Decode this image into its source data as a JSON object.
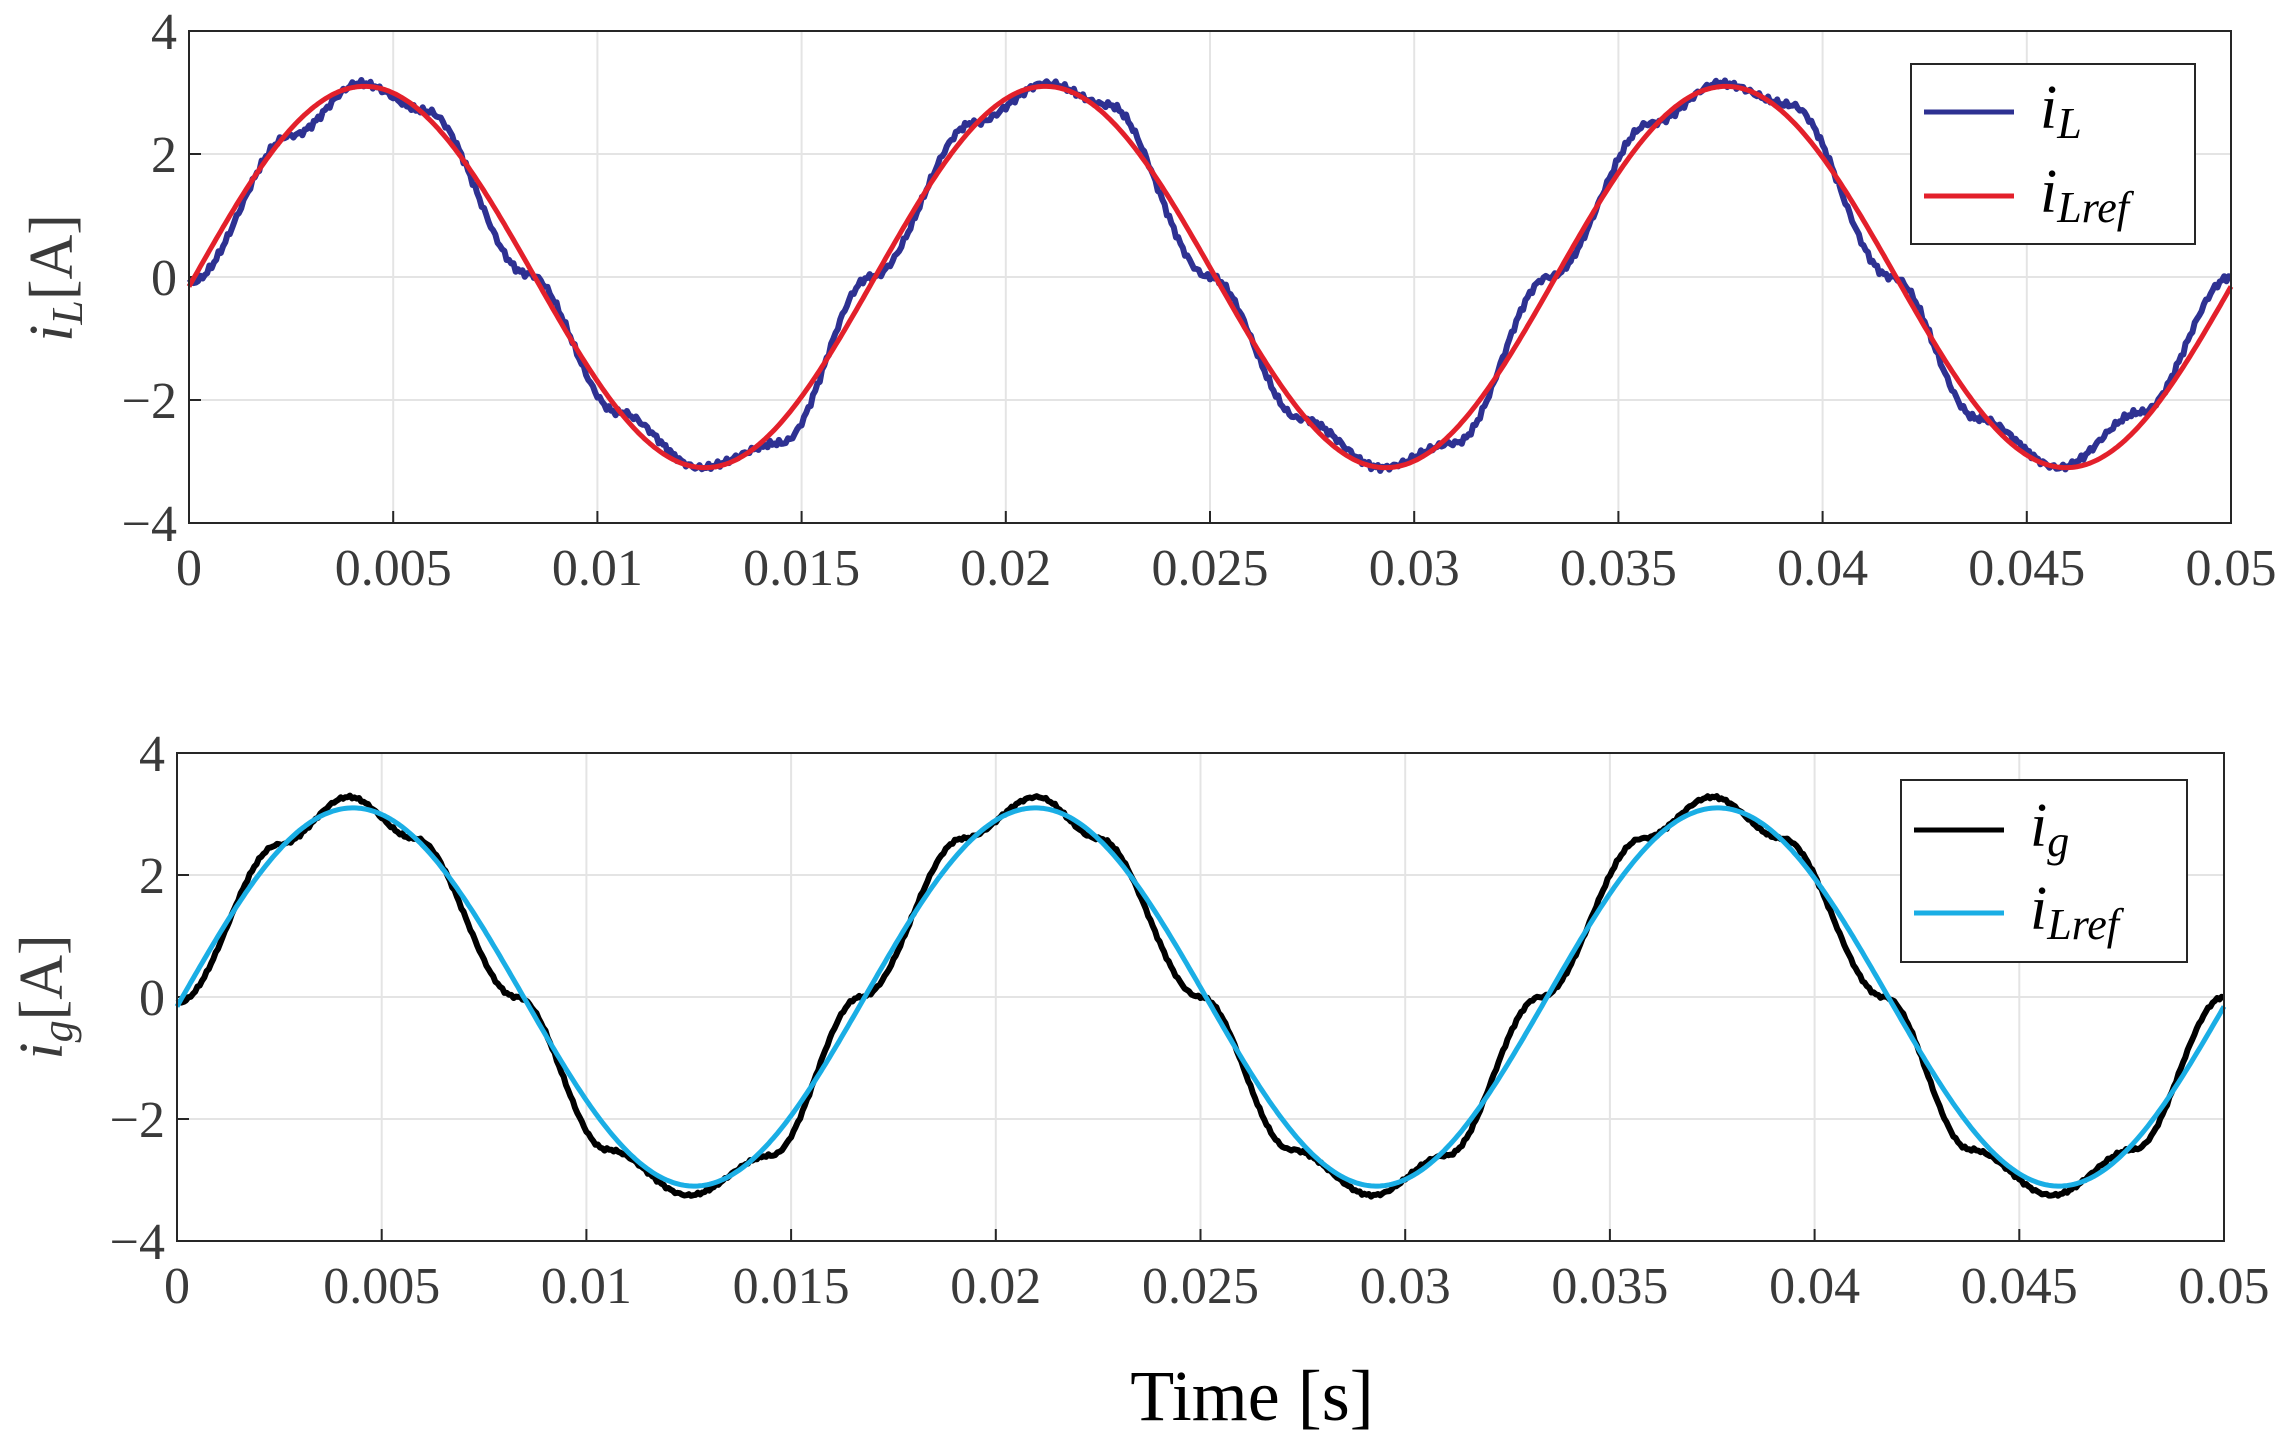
{
  "figure": {
    "xlabel": "Time [s]"
  },
  "chart_data": [
    {
      "type": "line",
      "ylabel_main": "i",
      "ylabel_sub": "L",
      "ylabel_unit": "[A]",
      "xlim": [
        0,
        0.05
      ],
      "ylim": [
        -4,
        4
      ],
      "grid": true,
      "legend_position": "top-right",
      "x_ticks": [
        "0",
        "0.005",
        "0.01",
        "0.015",
        "0.02",
        "0.025",
        "0.03",
        "0.035",
        "0.04",
        "0.045",
        "0.05"
      ],
      "y_ticks": [
        "4",
        "2",
        "0",
        "−2",
        "−4"
      ],
      "series": [
        {
          "legend_main": "i",
          "legend_sub": "L",
          "color": "#2e3192",
          "x": [
            0,
            0.0025,
            0.0042,
            0.0058,
            0.0083,
            0.0105,
            0.0125,
            0.0145,
            0.0167,
            0.0192,
            0.021,
            0.0225,
            0.025,
            0.0272,
            0.0292,
            0.031,
            0.0333,
            0.0358,
            0.0375,
            0.0392,
            0.0417,
            0.0438,
            0.0458,
            0.0478,
            0.05
          ],
          "y": [
            -0.1,
            2.3,
            3.15,
            2.7,
            0.05,
            -2.2,
            -3.1,
            -2.7,
            0.0,
            2.5,
            3.15,
            2.8,
            0.0,
            -2.3,
            -3.1,
            -2.7,
            0.0,
            2.5,
            3.15,
            2.8,
            0.0,
            -2.3,
            -3.1,
            -2.2,
            0.0
          ]
        },
        {
          "legend_main": "i",
          "legend_sub": "Lref",
          "color": "#e3202b",
          "amplitude": 3.1,
          "frequency_hz": 60,
          "phase_rad": -0.05,
          "x_range": [
            0,
            0.05
          ]
        }
      ]
    },
    {
      "type": "line",
      "ylabel_main": "i",
      "ylabel_sub": "g",
      "ylabel_unit": "[A]",
      "xlim": [
        0,
        0.05
      ],
      "ylim": [
        -4,
        4
      ],
      "grid": true,
      "legend_position": "top-right",
      "x_ticks": [
        "0",
        "0.005",
        "0.01",
        "0.015",
        "0.02",
        "0.025",
        "0.03",
        "0.035",
        "0.04",
        "0.045",
        "0.05"
      ],
      "y_ticks": [
        "4",
        "2",
        "0",
        "−2",
        "−4"
      ],
      "series": [
        {
          "legend_main": "i",
          "legend_sub": "g",
          "color": "#000000",
          "x": [
            0,
            0.0025,
            0.0042,
            0.0058,
            0.0083,
            0.0105,
            0.0125,
            0.0145,
            0.0167,
            0.0192,
            0.021,
            0.0225,
            0.025,
            0.0272,
            0.0292,
            0.031,
            0.0333,
            0.0358,
            0.0375,
            0.0392,
            0.0417,
            0.0438,
            0.0458,
            0.0478,
            0.05
          ],
          "y": [
            -0.1,
            2.5,
            3.28,
            2.6,
            0.0,
            -2.5,
            -3.25,
            -2.6,
            0.0,
            2.6,
            3.28,
            2.6,
            0.0,
            -2.5,
            -3.25,
            -2.6,
            0.0,
            2.6,
            3.28,
            2.6,
            0.0,
            -2.5,
            -3.25,
            -2.5,
            0.0
          ]
        },
        {
          "legend_main": "i",
          "legend_sub": "Lref",
          "color": "#1aaee5",
          "amplitude": 3.1,
          "frequency_hz": 60,
          "phase_rad": -0.05,
          "x_range": [
            0,
            0.05
          ]
        }
      ]
    }
  ]
}
